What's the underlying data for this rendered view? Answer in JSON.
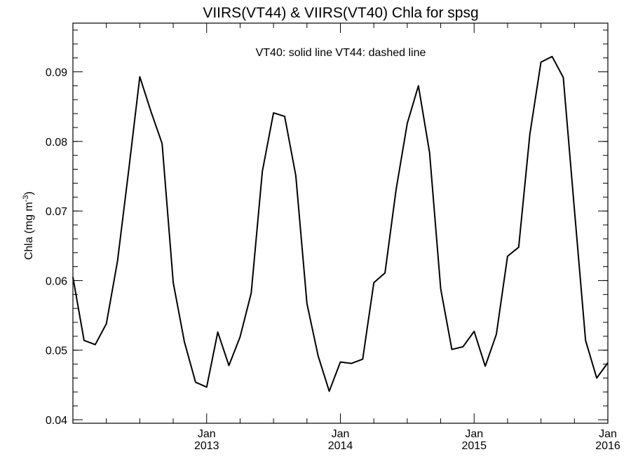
{
  "chart_data": {
    "type": "line",
    "title": "VIIRS(VT44) & VIIRS(VT40)  Chla for spsg",
    "legend_text": "VT40: solid line   VT44: dashed line",
    "ylabel_main": "Chla (mg m",
    "ylabel_sup": "-3",
    "ylabel_end": ")",
    "ylim": [
      0.0395,
      0.097
    ],
    "xlim": [
      "2012-01",
      "2016-01"
    ],
    "y_ticks": [
      0.04,
      0.05,
      0.06,
      0.07,
      0.08,
      0.09
    ],
    "y_tick_labels": [
      "0.04",
      "0.05",
      "0.06",
      "0.07",
      "0.08",
      "0.09"
    ],
    "x_major_ticks": [
      {
        "date": "2013-01",
        "month": "Jan",
        "year": "2013"
      },
      {
        "date": "2014-01",
        "month": "Jan",
        "year": "2014"
      },
      {
        "date": "2015-01",
        "month": "Jan",
        "year": "2015"
      },
      {
        "date": "2016-01",
        "month": "Jan",
        "year": "2016"
      }
    ],
    "series": [
      {
        "style": "solid",
        "x": [
          "2012-01",
          "2012-02",
          "2012-03",
          "2012-04",
          "2012-05",
          "2012-06",
          "2012-07",
          "2012-08",
          "2012-09",
          "2012-10",
          "2012-11",
          "2012-12",
          "2013-01",
          "2013-02",
          "2013-03",
          "2013-04",
          "2013-05",
          "2013-06",
          "2013-07",
          "2013-08",
          "2013-09",
          "2013-10",
          "2013-11",
          "2013-12",
          "2014-01",
          "2014-02",
          "2014-03",
          "2014-04",
          "2014-05",
          "2014-06",
          "2014-07",
          "2014-08",
          "2014-09",
          "2014-10",
          "2014-11",
          "2014-12",
          "2015-01",
          "2015-02",
          "2015-03",
          "2015-04",
          "2015-05",
          "2015-06",
          "2015-07",
          "2015-08",
          "2015-09",
          "2015-10",
          "2015-11",
          "2015-12",
          "2016-01"
        ],
        "y": [
          0.0605,
          0.0514,
          0.0508,
          0.0538,
          0.0628,
          0.0758,
          0.0893,
          0.0843,
          0.0797,
          0.0597,
          0.0512,
          0.0454,
          0.0447,
          0.0526,
          0.0478,
          0.0519,
          0.0582,
          0.0757,
          0.0841,
          0.0836,
          0.0751,
          0.0567,
          0.0492,
          0.0441,
          0.0483,
          0.0481,
          0.0487,
          0.0597,
          0.0611,
          0.0731,
          0.0826,
          0.088,
          0.0784,
          0.0588,
          0.0501,
          0.0505,
          0.0527,
          0.0477,
          0.0523,
          0.0635,
          0.0648,
          0.081,
          0.0914,
          0.0922,
          0.0892,
          0.0702,
          0.0514,
          0.046,
          0.0482
        ]
      }
    ]
  }
}
